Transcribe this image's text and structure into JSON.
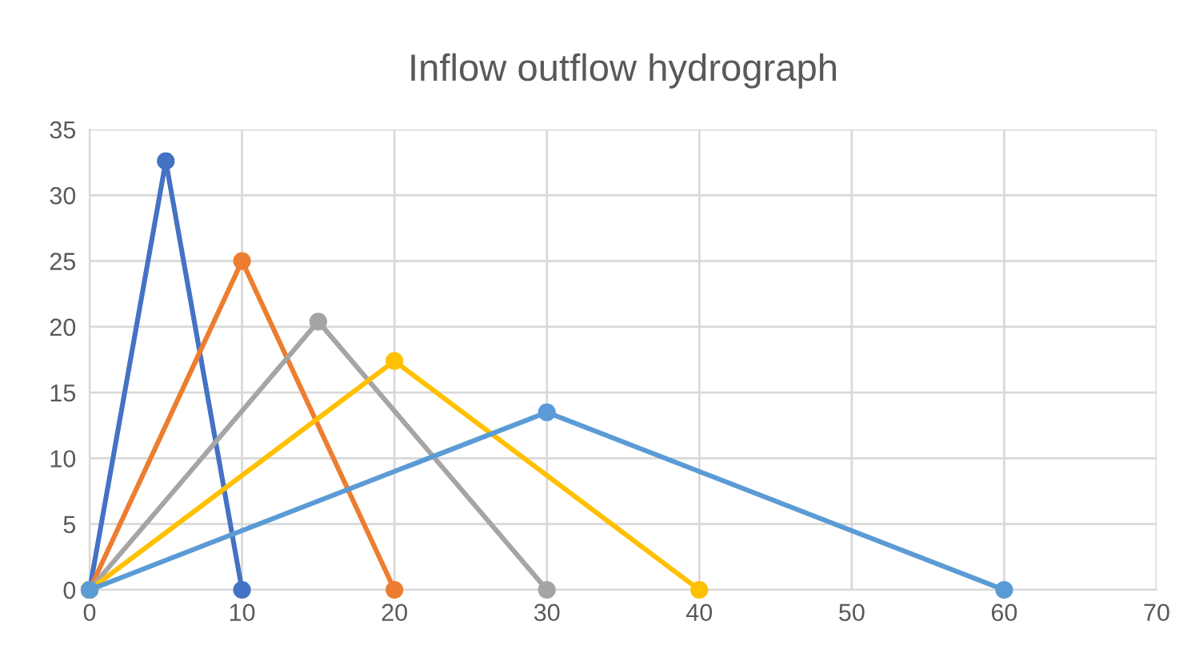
{
  "chart_data": {
    "type": "line",
    "title": "Inflow outflow hydrograph",
    "series": [
      {
        "color": "#4472c4",
        "x": [
          0,
          5,
          10
        ],
        "values": [
          0,
          32.6,
          0
        ]
      },
      {
        "color": "#ed7d31",
        "x": [
          0,
          10,
          20
        ],
        "values": [
          0,
          25.0,
          0
        ]
      },
      {
        "color": "#a5a5a5",
        "x": [
          0,
          15,
          30
        ],
        "values": [
          0,
          20.4,
          0
        ]
      },
      {
        "color": "#ffc000",
        "x": [
          0,
          20,
          40
        ],
        "values": [
          0,
          17.4,
          0
        ]
      },
      {
        "color": "#5b9bd5",
        "x": [
          0,
          30,
          60
        ],
        "values": [
          0,
          13.5,
          0
        ]
      }
    ],
    "xlim": [
      0,
      70
    ],
    "xticks": [
      0,
      10,
      20,
      30,
      40,
      50,
      60,
      70
    ],
    "ylim": [
      0,
      35
    ],
    "yticks": [
      0,
      5,
      10,
      15,
      20,
      25,
      30,
      35
    ],
    "grid": true,
    "marker": "circle",
    "line_style": "solid",
    "legend": false
  }
}
